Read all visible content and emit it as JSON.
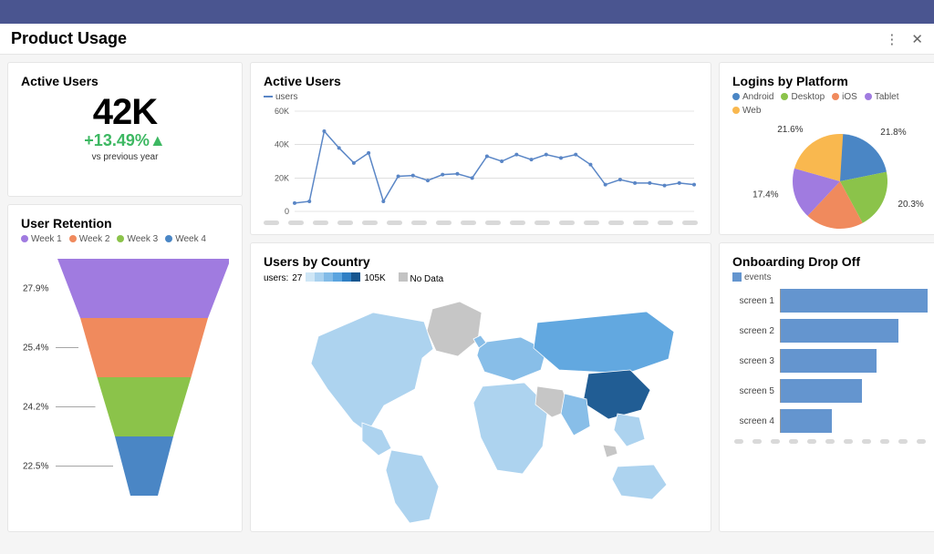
{
  "header": {
    "title": "Product Usage",
    "band_color": "#4a5590"
  },
  "kpi": {
    "title": "Active Users",
    "value": "42K",
    "delta": "+13.49%",
    "delta_arrow": "▲",
    "delta_color": "#3db862",
    "subtitle": "vs previous year"
  },
  "retention": {
    "title": "User Retention",
    "legend": [
      {
        "label": "Week 1",
        "color": "#a07be0"
      },
      {
        "label": "Week 2",
        "color": "#f08a5d"
      },
      {
        "label": "Week 3",
        "color": "#8bc34a"
      },
      {
        "label": "Week 4",
        "color": "#4a86c5"
      }
    ],
    "segments": [
      {
        "pct": "27.9%",
        "top_width": 190,
        "bot_width": 140,
        "color": "#a07be0"
      },
      {
        "pct": "25.4%",
        "top_width": 140,
        "bot_width": 103,
        "color": "#f08a5d"
      },
      {
        "pct": "24.2%",
        "top_width": 103,
        "bot_width": 64,
        "color": "#8bc34a"
      },
      {
        "pct": "22.5%",
        "top_width": 64,
        "bot_width": 30,
        "color": "#4a86c5"
      }
    ],
    "segment_height": 65
  },
  "active_chart": {
    "title": "Active Users",
    "legend_label": "users",
    "line_color": "#5a86c6",
    "grid_color": "#cccccc",
    "yticks": [
      "60K",
      "40K",
      "20K",
      "0"
    ],
    "ylim": [
      0,
      60000
    ],
    "values": [
      5000,
      6000,
      48000,
      38000,
      29000,
      35000,
      6000,
      21000,
      21500,
      18500,
      22000,
      22500,
      20000,
      33000,
      30000,
      34000,
      31000,
      34000,
      32000,
      34000,
      28000,
      16000,
      19000,
      17000,
      17000,
      15500,
      17000,
      16000
    ]
  },
  "logins": {
    "title": "Logins by Platform",
    "slices": [
      {
        "label": "Android",
        "pct": 21.8,
        "color": "#4a86c5"
      },
      {
        "label": "Desktop",
        "pct": 20.3,
        "color": "#8bc34a"
      },
      {
        "label": "iOS",
        "pct": 19.9,
        "color": "#f08a5d"
      },
      {
        "label": "Tablet",
        "pct": 17.4,
        "color": "#a07be0"
      },
      {
        "label": "Web",
        "pct": 21.6,
        "color": "#f9b84f"
      }
    ]
  },
  "map": {
    "title": "Users by Country",
    "legend_label": "users:",
    "min": "27",
    "max": "105K",
    "nodata_label": "No Data",
    "scale_colors": [
      "#cfe6f6",
      "#a9d1ef",
      "#82bbe7",
      "#5aa4df",
      "#2f7fc4",
      "#16558f"
    ],
    "nodata_color": "#c3c3c3"
  },
  "dropoff": {
    "title": "Onboarding Drop Off",
    "legend_label": "events",
    "bar_color": "#6495cf",
    "rows": [
      {
        "label": "screen 1",
        "value": 100
      },
      {
        "label": "screen 2",
        "value": 80
      },
      {
        "label": "screen 3",
        "value": 65
      },
      {
        "label": "screen 5",
        "value": 55
      },
      {
        "label": "screen 4",
        "value": 35
      }
    ]
  }
}
